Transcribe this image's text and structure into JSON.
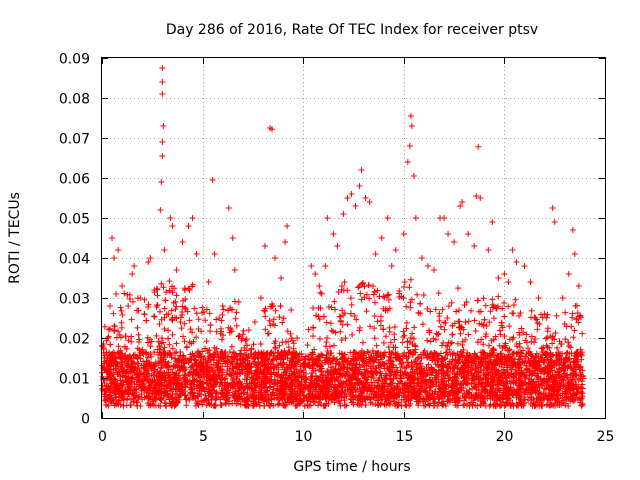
{
  "chart_data": {
    "type": "scatter",
    "title": "Day 286 of 2016, Rate Of TEC Index for receiver ptsv",
    "xlabel": "GPS time / hours",
    "ylabel": "ROTI / TECUs",
    "xlim": [
      0,
      25
    ],
    "ylim": [
      0,
      0.09
    ],
    "xticks": [
      0,
      5,
      10,
      15,
      20,
      25
    ],
    "xtick_labels": [
      "0",
      "5",
      "10",
      "15",
      "20",
      "25"
    ],
    "yticks": [
      0,
      0.01,
      0.02,
      0.03,
      0.04,
      0.05,
      0.06,
      0.07,
      0.08,
      0.09
    ],
    "ytick_labels": [
      "0",
      "0.01",
      "0.02",
      "0.03",
      "0.04",
      "0.05",
      "0.06",
      "0.07",
      "0.08",
      "0.09"
    ],
    "grid": true,
    "marker": "+",
    "series": [
      {
        "name": "ROTI",
        "color": "#ff0000",
        "points": [
          [
            0.2,
            0.012
          ],
          [
            0.3,
            0.02
          ],
          [
            0.4,
            0.028
          ],
          [
            0.5,
            0.045
          ],
          [
            0.6,
            0.04
          ],
          [
            0.7,
            0.031
          ],
          [
            0.8,
            0.042
          ],
          [
            1.0,
            0.033
          ],
          [
            1.3,
            0.028
          ],
          [
            1.5,
            0.036
          ],
          [
            1.6,
            0.038
          ],
          [
            1.9,
            0.03
          ],
          [
            2.1,
            0.026
          ],
          [
            2.3,
            0.039
          ],
          [
            2.4,
            0.04
          ],
          [
            2.6,
            0.032
          ],
          [
            2.9,
            0.052
          ],
          [
            2.95,
            0.059
          ],
          [
            3.0,
            0.0875
          ],
          [
            3.0,
            0.084
          ],
          [
            3.0,
            0.081
          ],
          [
            3.05,
            0.073
          ],
          [
            3.0,
            0.069
          ],
          [
            3.0,
            0.0655
          ],
          [
            3.1,
            0.042
          ],
          [
            3.4,
            0.05
          ],
          [
            3.5,
            0.048
          ],
          [
            3.7,
            0.037
          ],
          [
            4.0,
            0.044
          ],
          [
            4.3,
            0.048
          ],
          [
            4.5,
            0.05
          ],
          [
            4.7,
            0.041
          ],
          [
            5.3,
            0.034
          ],
          [
            5.5,
            0.0595
          ],
          [
            5.6,
            0.041
          ],
          [
            6.0,
            0.028
          ],
          [
            6.3,
            0.0525
          ],
          [
            6.5,
            0.045
          ],
          [
            6.6,
            0.037
          ],
          [
            6.8,
            0.029
          ],
          [
            7.3,
            0.022
          ],
          [
            7.6,
            0.024
          ],
          [
            7.9,
            0.03
          ],
          [
            8.1,
            0.043
          ],
          [
            8.35,
            0.0725
          ],
          [
            8.45,
            0.0722
          ],
          [
            8.6,
            0.04
          ],
          [
            8.9,
            0.035
          ],
          [
            9.1,
            0.044
          ],
          [
            9.2,
            0.048
          ],
          [
            9.4,
            0.027
          ],
          [
            9.7,
            0.02
          ],
          [
            10.0,
            0.013
          ],
          [
            10.4,
            0.038
          ],
          [
            10.6,
            0.036
          ],
          [
            10.8,
            0.033
          ],
          [
            11.1,
            0.038
          ],
          [
            11.2,
            0.05
          ],
          [
            11.5,
            0.046
          ],
          [
            11.7,
            0.043
          ],
          [
            12.0,
            0.051
          ],
          [
            12.2,
            0.055
          ],
          [
            12.4,
            0.056
          ],
          [
            12.6,
            0.053
          ],
          [
            12.8,
            0.058
          ],
          [
            12.9,
            0.062
          ],
          [
            13.1,
            0.055
          ],
          [
            13.3,
            0.054
          ],
          [
            13.6,
            0.041
          ],
          [
            13.9,
            0.045
          ],
          [
            14.2,
            0.05
          ],
          [
            14.4,
            0.038
          ],
          [
            14.6,
            0.042
          ],
          [
            15.0,
            0.046
          ],
          [
            15.2,
            0.064
          ],
          [
            15.3,
            0.068
          ],
          [
            15.35,
            0.0755
          ],
          [
            15.4,
            0.073
          ],
          [
            15.5,
            0.0605
          ],
          [
            15.6,
            0.05
          ],
          [
            15.9,
            0.04
          ],
          [
            16.2,
            0.038
          ],
          [
            16.5,
            0.037
          ],
          [
            16.8,
            0.05
          ],
          [
            17.0,
            0.05
          ],
          [
            17.2,
            0.046
          ],
          [
            17.5,
            0.044
          ],
          [
            17.8,
            0.053
          ],
          [
            17.9,
            0.054
          ],
          [
            18.2,
            0.046
          ],
          [
            18.5,
            0.043
          ],
          [
            18.6,
            0.0555
          ],
          [
            18.7,
            0.0678
          ],
          [
            18.8,
            0.055
          ],
          [
            19.2,
            0.042
          ],
          [
            19.4,
            0.049
          ],
          [
            19.7,
            0.035
          ],
          [
            20.0,
            0.036
          ],
          [
            20.2,
            0.034
          ],
          [
            20.4,
            0.042
          ],
          [
            20.6,
            0.039
          ],
          [
            21.0,
            0.038
          ],
          [
            21.3,
            0.034
          ],
          [
            21.7,
            0.03
          ],
          [
            22.0,
            0.026
          ],
          [
            22.4,
            0.0525
          ],
          [
            22.5,
            0.049
          ],
          [
            22.9,
            0.03
          ],
          [
            23.2,
            0.036
          ],
          [
            23.4,
            0.047
          ],
          [
            23.5,
            0.041
          ],
          [
            23.7,
            0.033
          ]
        ],
        "density_envelope": [
          [
            0,
            0.022
          ],
          [
            0.5,
            0.03
          ],
          [
            1,
            0.032
          ],
          [
            1.5,
            0.031
          ],
          [
            2,
            0.03
          ],
          [
            2.5,
            0.031
          ],
          [
            3,
            0.035
          ],
          [
            3.5,
            0.034
          ],
          [
            4,
            0.033
          ],
          [
            4.5,
            0.034
          ],
          [
            5,
            0.028
          ],
          [
            5.5,
            0.026
          ],
          [
            6,
            0.027
          ],
          [
            6.5,
            0.032
          ],
          [
            7,
            0.022
          ],
          [
            7.5,
            0.02
          ],
          [
            8,
            0.027
          ],
          [
            8.5,
            0.03
          ],
          [
            9,
            0.03
          ],
          [
            9.5,
            0.02
          ],
          [
            10,
            0.014
          ],
          [
            10.5,
            0.03
          ],
          [
            11,
            0.032
          ],
          [
            11.5,
            0.03
          ],
          [
            12,
            0.034
          ],
          [
            12.5,
            0.034
          ],
          [
            13,
            0.036
          ],
          [
            13.5,
            0.033
          ],
          [
            14,
            0.032
          ],
          [
            14.5,
            0.032
          ],
          [
            15,
            0.034
          ],
          [
            15.5,
            0.035
          ],
          [
            16,
            0.031
          ],
          [
            16.5,
            0.031
          ],
          [
            17,
            0.032
          ],
          [
            17.5,
            0.034
          ],
          [
            18,
            0.034
          ],
          [
            18.5,
            0.033
          ],
          [
            19,
            0.032
          ],
          [
            19.5,
            0.03
          ],
          [
            20,
            0.031
          ],
          [
            20.5,
            0.03
          ],
          [
            21,
            0.029
          ],
          [
            21.5,
            0.028
          ],
          [
            22,
            0.026
          ],
          [
            22.5,
            0.027
          ],
          [
            23,
            0.027
          ],
          [
            23.5,
            0.03
          ],
          [
            23.9,
            0.024
          ]
        ],
        "x_extent": [
          0,
          23.9
        ]
      }
    ]
  }
}
